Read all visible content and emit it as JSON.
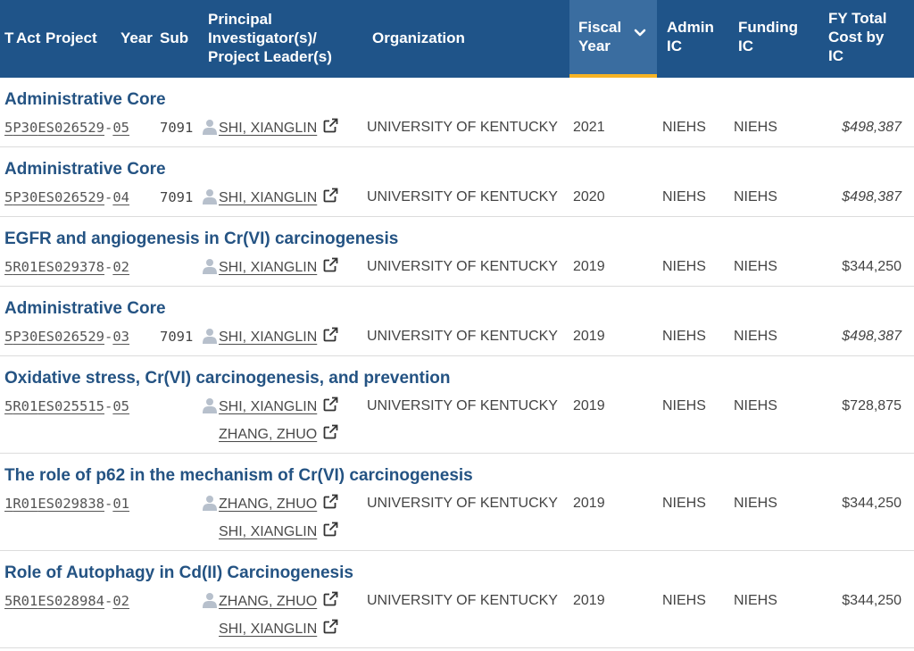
{
  "header": {
    "col_type": "T",
    "col_act": "Act",
    "col_project": "Project",
    "col_year": "Year",
    "col_sub": "Sub",
    "col_pi_line1": "Principal",
    "col_pi_line2": "Investigator(s)/",
    "col_pi_line3": "Project Leader(s)",
    "col_org": "Organization",
    "col_fiscal_line1": "Fiscal",
    "col_fiscal_line2": "Year",
    "col_admin_line1": "Admin",
    "col_admin_line2": "IC",
    "col_funding_line1": "Funding",
    "col_funding_line2": "IC",
    "col_cost_line1": "FY Total",
    "col_cost_line2": "Cost by",
    "col_cost_line3": "IC",
    "sort_icon": "chevron-down-icon",
    "sorted_column_color": "#f6b324"
  },
  "rows": [
    {
      "title": "Administrative Core",
      "type": "5",
      "act": "P30",
      "ic_serial": "ES026529",
      "year": "05",
      "sub": "7091",
      "pis": [
        "SHI, XIANGLIN"
      ],
      "org": "UNIVERSITY OF KENTUCKY",
      "fy": "2021",
      "admin": "NIEHS",
      "funding": "NIEHS",
      "cost": "$498,387",
      "cost_italic": true
    },
    {
      "title": "Administrative Core",
      "type": "5",
      "act": "P30",
      "ic_serial": "ES026529",
      "year": "04",
      "sub": "7091",
      "pis": [
        "SHI, XIANGLIN"
      ],
      "org": "UNIVERSITY OF KENTUCKY",
      "fy": "2020",
      "admin": "NIEHS",
      "funding": "NIEHS",
      "cost": "$498,387",
      "cost_italic": true
    },
    {
      "title": "EGFR and angiogenesis in Cr(VI) carcinogenesis",
      "type": "5",
      "act": "R01",
      "ic_serial": "ES029378",
      "year": "02",
      "sub": "",
      "pis": [
        "SHI, XIANGLIN"
      ],
      "org": "UNIVERSITY OF KENTUCKY",
      "fy": "2019",
      "admin": "NIEHS",
      "funding": "NIEHS",
      "cost": "$344,250",
      "cost_italic": false
    },
    {
      "title": "Administrative Core",
      "type": "5",
      "act": "P30",
      "ic_serial": "ES026529",
      "year": "03",
      "sub": "7091",
      "pis": [
        "SHI, XIANGLIN"
      ],
      "org": "UNIVERSITY OF KENTUCKY",
      "fy": "2019",
      "admin": "NIEHS",
      "funding": "NIEHS",
      "cost": "$498,387",
      "cost_italic": true
    },
    {
      "title": "Oxidative stress, Cr(VI) carcinogenesis, and prevention",
      "type": "5",
      "act": "R01",
      "ic_serial": "ES025515",
      "year": "05",
      "sub": "",
      "pis": [
        "SHI, XIANGLIN",
        "ZHANG, ZHUO"
      ],
      "org": "UNIVERSITY OF KENTUCKY",
      "fy": "2019",
      "admin": "NIEHS",
      "funding": "NIEHS",
      "cost": "$728,875",
      "cost_italic": false
    },
    {
      "title": "The role of p62 in the mechanism of Cr(VI) carcinogenesis",
      "type": "1",
      "act": "R01",
      "ic_serial": "ES029838",
      "year": "01",
      "sub": "",
      "pis": [
        "ZHANG, ZHUO",
        "SHI, XIANGLIN"
      ],
      "org": "UNIVERSITY OF KENTUCKY",
      "fy": "2019",
      "admin": "NIEHS",
      "funding": "NIEHS",
      "cost": "$344,250",
      "cost_italic": false
    },
    {
      "title": "Role of Autophagy in Cd(II) Carcinogenesis",
      "type": "5",
      "act": "R01",
      "ic_serial": "ES028984",
      "year": "02",
      "sub": "",
      "pis": [
        "ZHANG, ZHUO",
        "SHI, XIANGLIN"
      ],
      "org": "UNIVERSITY OF KENTUCKY",
      "fy": "2019",
      "admin": "NIEHS",
      "funding": "NIEHS",
      "cost": "$344,250",
      "cost_italic": false
    }
  ]
}
